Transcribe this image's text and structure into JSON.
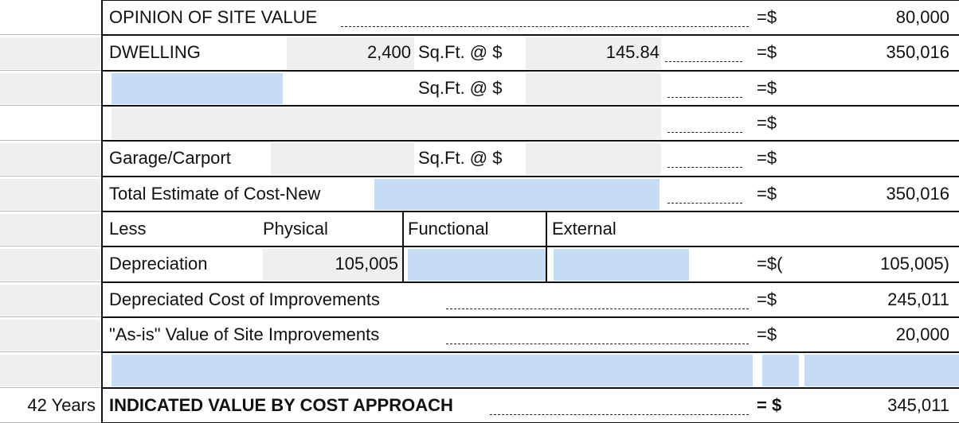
{
  "rows": [
    {
      "label": "OPINION OF SITE VALUE",
      "eq": "=$",
      "amount": "80,000"
    },
    {
      "label": "DWELLING",
      "area": "2,400",
      "unit": "Sq.Ft. @ $",
      "rate": "145.84",
      "eq": "=$",
      "amount": "350,016"
    },
    {
      "unit": "Sq.Ft. @ $",
      "eq": "=$"
    },
    {
      "eq": "=$"
    },
    {
      "label": "Garage/Carport",
      "unit": "Sq.Ft. @ $",
      "eq": "=$"
    },
    {
      "label": "Total Estimate of Cost-New",
      "eq": "=$",
      "amount": "350,016"
    },
    {
      "label": "Less",
      "physical": "Physical",
      "functional": "Functional",
      "external": "External"
    },
    {
      "label": "Depreciation",
      "physical": "105,005",
      "eq": "=$(",
      "amount": "105,005)"
    },
    {
      "label": "Depreciated Cost of Improvements",
      "eq": "=$",
      "amount": "245,011"
    },
    {
      "label": "\"As-is\" Value of Site Improvements",
      "eq": "=$",
      "amount": "20,000"
    }
  ],
  "total": {
    "age": "42 Years",
    "label": "INDICATED VALUE BY COST APPROACH",
    "eq": "= $",
    "amount": "345,011"
  }
}
